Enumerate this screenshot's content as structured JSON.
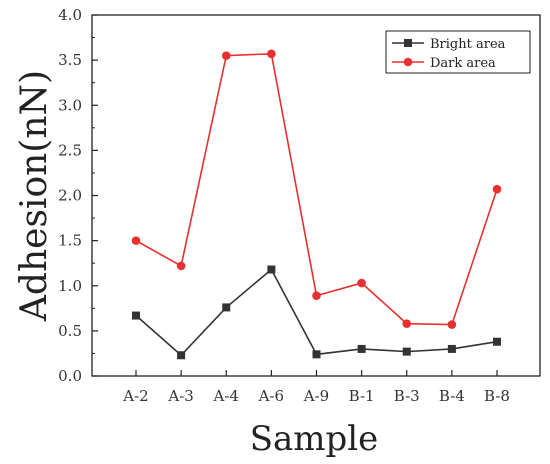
{
  "chart_data": {
    "type": "line",
    "categories": [
      "A-2",
      "A-3",
      "A-4",
      "A-6",
      "A-9",
      "B-1",
      "B-3",
      "B-4",
      "B-8"
    ],
    "series": [
      {
        "name": "Bright area",
        "color": "#333333",
        "marker": "square",
        "values": [
          0.67,
          0.23,
          0.76,
          1.18,
          0.24,
          0.3,
          0.27,
          0.3,
          0.38
        ]
      },
      {
        "name": "Dark area",
        "color": "#e8312f",
        "marker": "circle",
        "values": [
          1.5,
          1.22,
          3.55,
          3.57,
          0.89,
          1.03,
          0.58,
          0.57,
          2.07
        ]
      }
    ],
    "xlabel": "Sample",
    "ylabel": "Adhesion(nN)",
    "ylim": [
      0,
      4.0
    ],
    "yticks": [
      "0.0",
      "0.5",
      "1.0",
      "1.5",
      "2.0",
      "2.5",
      "3.0",
      "3.5",
      "4.0"
    ],
    "legend": "top-right",
    "grid": false
  }
}
